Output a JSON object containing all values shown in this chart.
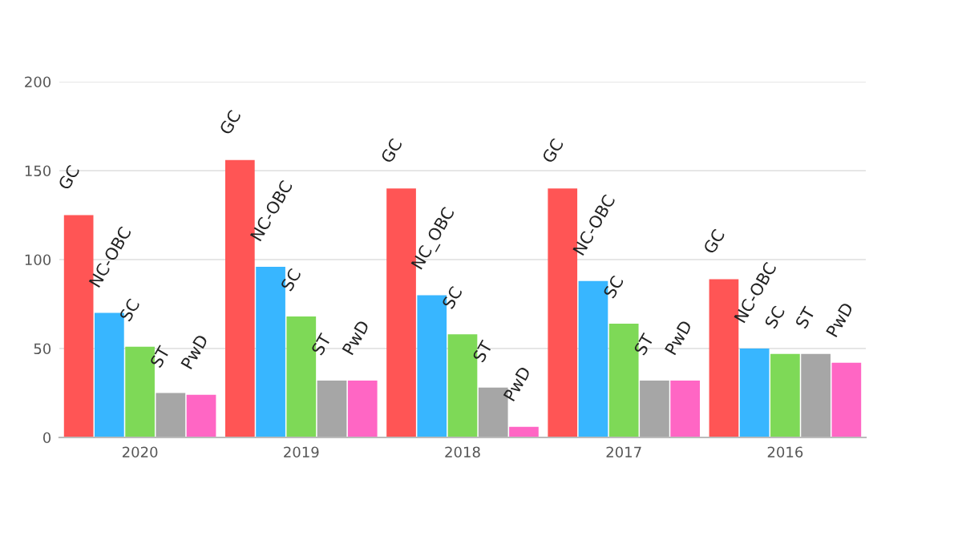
{
  "chart_data": {
    "type": "bar",
    "categories": [
      "2020",
      "2019",
      "2018",
      "2017",
      "2016"
    ],
    "series": [
      {
        "color": "#ff5555",
        "values": [
          125,
          156,
          140,
          140,
          89
        ],
        "value_labels": [
          "GC",
          "GC",
          "GC",
          "GC",
          "GC"
        ]
      },
      {
        "color": "#38b6ff",
        "values": [
          70,
          96,
          80,
          88,
          50
        ],
        "value_labels": [
          "NC-OBC",
          "NC-OBC",
          "NC_OBC",
          "NC-OBC",
          "NC-OBC"
        ]
      },
      {
        "color": "#7ed957",
        "values": [
          51,
          68,
          58,
          64,
          47
        ],
        "value_labels": [
          "SC",
          "SC",
          "SC",
          "SC",
          "SC"
        ]
      },
      {
        "color": "#a6a6a6",
        "values": [
          25,
          32,
          28,
          32,
          47
        ],
        "value_labels": [
          "ST",
          "ST",
          "ST",
          "ST",
          "ST"
        ]
      },
      {
        "color": "#ff66c4",
        "values": [
          24,
          32,
          6,
          32,
          42
        ],
        "value_labels": [
          "PwD",
          "PwD",
          "PwD",
          "PwD",
          "PwD"
        ]
      }
    ],
    "ylim": [
      0,
      200
    ],
    "yticks": [
      0,
      50,
      100,
      150,
      200
    ],
    "grid": "y",
    "legend": false
  }
}
